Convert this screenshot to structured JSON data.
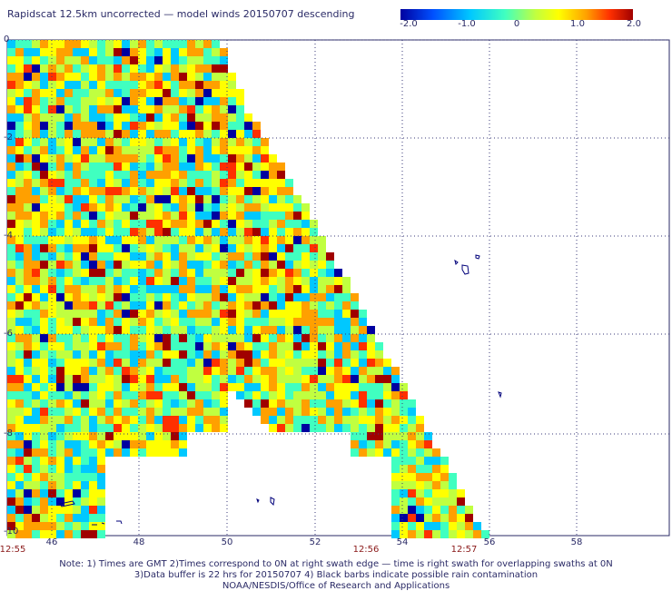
{
  "title": "Rapidscat 12.5km uncorrected — model winds 20150707 descending",
  "colorbar": {
    "labels": [
      "-2.0",
      "-1.0",
      "0",
      "1.0",
      "2.0"
    ],
    "min": -2.0,
    "max": 2.0,
    "colors": [
      "#0000a0",
      "#0050ff",
      "#00c8ff",
      "#40ffc0",
      "#c0ff40",
      "#ffff00",
      "#ffa000",
      "#ff3000",
      "#a00000"
    ]
  },
  "lat_labels": [
    "0",
    "-2",
    "-4",
    "-6",
    "-8",
    "-10"
  ],
  "lon_labels": [
    "46",
    "48",
    "50",
    "52",
    "54",
    "56",
    "58"
  ],
  "time_labels": [
    "12:55",
    "12:56",
    "12:57"
  ],
  "notes": [
    "Note: 1) Times are GMT 2)Times correspond to 0N at right swath edge — time is right swath for overlapping swaths at 0N",
    "3)Data buffer is 22 hrs for 20150707 4) Black barbs indicate possible rain contamination",
    "NOAA/NESDIS/Office of Research and Applications"
  ]
}
